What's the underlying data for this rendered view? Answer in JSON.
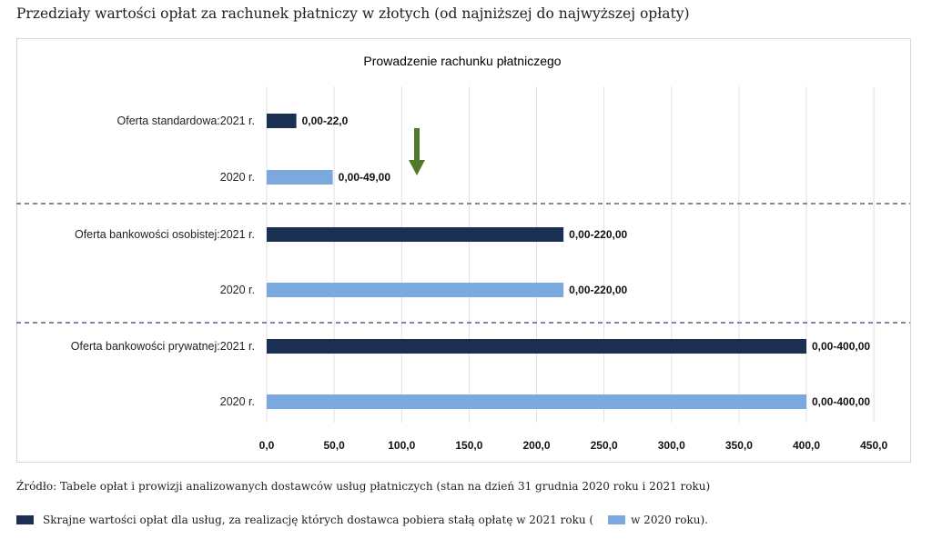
{
  "page_title": "Przedziały wartości opłat za rachunek płatniczy w złotych (od najniższej do najwyższej opłaty)",
  "colors": {
    "dark": "#1b2f52",
    "light": "#7ba8df",
    "grid": "#e1e1e1",
    "separator": "#4e6382",
    "arrow": "#4f7a2a"
  },
  "chart_data": {
    "type": "bar",
    "orientation": "horizontal",
    "title": "Prowadzenie rachunku płatniczego",
    "xlim": [
      0,
      450
    ],
    "ticks": [
      "0,0",
      "50,0",
      "100,0",
      "150,0",
      "200,0",
      "250,0",
      "300,0",
      "350,0",
      "400,0",
      "450,0"
    ],
    "grid": true,
    "series": [
      {
        "name": "Skrajne wartości opłat dla usług, za realizację których dostawca pobiera stałą opłatę w 2021 roku",
        "color": "#1b2f52"
      },
      {
        "name": "w 2020 roku",
        "color": "#7ba8df"
      }
    ],
    "bars": [
      {
        "category": "Oferta standardowa:2021 r.",
        "min": 0,
        "max": 22,
        "label": "0,00-22,0",
        "series": 0
      },
      {
        "category": "2020 r.",
        "min": 0,
        "max": 49,
        "label": "0,00-49,00",
        "series": 1
      },
      {
        "category": "Oferta bankowości osobistej:2021 r.",
        "min": 0,
        "max": 220,
        "label": "0,00-220,00",
        "series": 0
      },
      {
        "category": "2020 r.",
        "min": 0,
        "max": 220,
        "label": "0,00-220,00",
        "series": 1
      },
      {
        "category": "Oferta bankowości prywatnej:2021 r.",
        "min": 0,
        "max": 400,
        "label": "0,00-400,00",
        "series": 0
      },
      {
        "category": "2020 r.",
        "min": 0,
        "max": 400,
        "label": "0,00-400,00",
        "series": 1
      }
    ],
    "annotation": "down-arrow"
  },
  "source_note": "Źródło: Tabele opłat i prowizji analizowanych dostawców usług płatniczych (stan na dzień 31 grudnia 2020 roku i 2021 roku)",
  "legend": {
    "item1": "Skrajne wartości opłat dla usług, za realizację których dostawca pobiera stałą opłatę w 2021 roku (",
    "item2": "w 2020 roku)."
  }
}
